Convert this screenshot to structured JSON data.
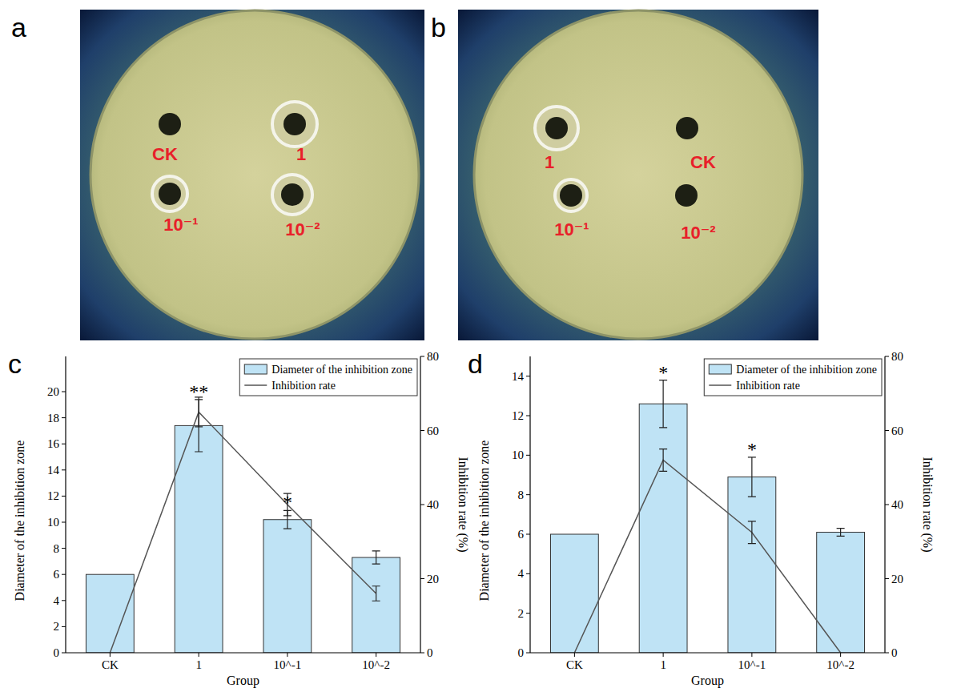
{
  "panels": {
    "letters": [
      "a",
      "b",
      "c",
      "d"
    ]
  },
  "plates": [
    {
      "wells": [
        {
          "label": "CK",
          "halo": false
        },
        {
          "label": "1",
          "halo": true
        },
        {
          "label": "10⁻¹",
          "halo": true
        },
        {
          "label": "10⁻²",
          "halo": true
        }
      ]
    },
    {
      "wells": [
        {
          "label": "1",
          "halo": true
        },
        {
          "label": "CK",
          "halo": false
        },
        {
          "label": "10⁻¹",
          "halo": true
        },
        {
          "label": "10⁻²",
          "halo": false
        }
      ]
    }
  ],
  "chart_data": [
    {
      "type": "bar",
      "x_label": "Group",
      "y_label": "Diameter of the inhibition zone",
      "y2_label": "Inhibition rate (%)",
      "categories": [
        "CK",
        "1",
        "10^-1",
        "10^-2"
      ],
      "ylim": [
        0,
        22.7
      ],
      "yticks": [
        0,
        2,
        4,
        6,
        8,
        10,
        12,
        14,
        16,
        18,
        20
      ],
      "y2lim": [
        0,
        80
      ],
      "y2ticks": [
        0,
        20,
        40,
        60,
        80
      ],
      "legend": "top-right",
      "series": [
        {
          "name": "Diameter of the inhibition zone",
          "type": "bar",
          "color": "#bfe3f5",
          "values": [
            6,
            17.4,
            10.2,
            7.3
          ],
          "errors": [
            null,
            2.0,
            0.7,
            0.5
          ]
        },
        {
          "name": "Inhibition rate",
          "type": "line",
          "axis": "y2",
          "color": "#555555",
          "values": [
            0,
            65,
            40,
            16
          ],
          "errors": [
            null,
            4,
            3,
            2
          ]
        }
      ],
      "annotations": [
        {
          "category": "1",
          "text": "**"
        },
        {
          "category": "10^-1",
          "text": "*"
        }
      ]
    },
    {
      "type": "bar",
      "x_label": "Group",
      "y_label": "Diameter of the inhibition zone",
      "y2_label": "Inhibition rate (%)",
      "categories": [
        "CK",
        "1",
        "10^-1",
        "10^-2"
      ],
      "ylim": [
        0,
        15
      ],
      "yticks": [
        0,
        2,
        4,
        6,
        8,
        10,
        12,
        14
      ],
      "y2lim": [
        0,
        80
      ],
      "y2ticks": [
        0,
        20,
        40,
        60,
        80
      ],
      "legend": "top-right",
      "series": [
        {
          "name": "Diameter of the inhibition zone",
          "type": "bar",
          "color": "#bfe3f5",
          "values": [
            6,
            12.6,
            8.9,
            6.1
          ],
          "errors": [
            null,
            1.2,
            1.0,
            0.2
          ]
        },
        {
          "name": "Inhibition rate",
          "type": "line",
          "axis": "y2",
          "color": "#555555",
          "values": [
            0,
            52,
            32.5,
            0
          ],
          "errors": [
            null,
            3,
            3,
            null
          ]
        }
      ],
      "annotations": [
        {
          "category": "1",
          "text": "*"
        },
        {
          "category": "10^-1",
          "text": "*"
        }
      ]
    }
  ]
}
